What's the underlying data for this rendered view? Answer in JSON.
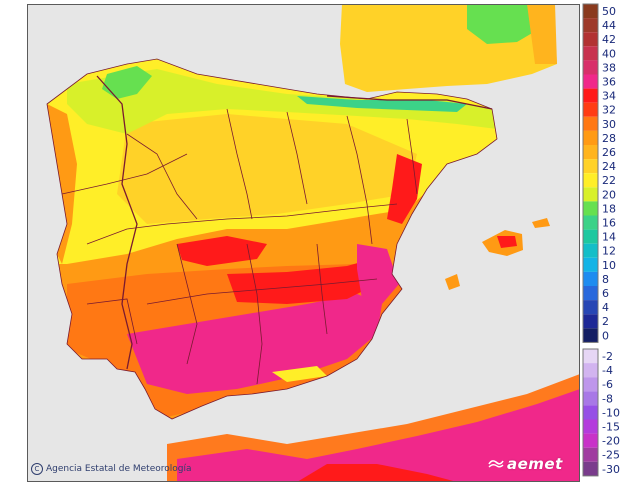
{
  "colors": {
    "sea": "#e6e6e6",
    "frame": "#5a5a5a",
    "border": "#7a1a30",
    "africa_coast": "#ff7a1e",
    "scale": {
      "c50": "#8a3a1e",
      "c44": "#9e3a2a",
      "c42": "#b23232",
      "c40": "#c8324e",
      "c38": "#d8306a",
      "c36": "#f0288a",
      "c34": "#ff1a1a",
      "c32": "#ff3c14",
      "c30": "#ff7814",
      "c28": "#ff9a14",
      "c26": "#ffb41e",
      "c24": "#ffd228",
      "c22": "#ffee28",
      "c20": "#d8f02a",
      "c18": "#66e050",
      "c16": "#3cd288",
      "c14": "#1ec8a0",
      "c12": "#14bec8",
      "c10": "#14b4e6",
      "c8": "#1e8cf0",
      "c6": "#2868dc",
      "c4": "#2846b4",
      "c2": "#1e2896",
      "c0": "#141e64",
      "cm2": "#e6d6f5",
      "cm4": "#d2b4f0",
      "cm6": "#be96eb",
      "cm8": "#a878e6",
      "cm10": "#9650e6",
      "cm15": "#b43cdc",
      "cm20": "#c832c8",
      "cm25": "#a03ca0",
      "cm30": "#7a3c8c"
    }
  },
  "legend": {
    "labels": [
      "50",
      "44",
      "42",
      "40",
      "38",
      "36",
      "34",
      "32",
      "30",
      "28",
      "26",
      "24",
      "22",
      "20",
      "18",
      "16",
      "14",
      "12",
      "10",
      "8",
      "6",
      "4",
      "2",
      "0",
      "-2",
      "-4",
      "-6",
      "-8",
      "-10",
      "-15",
      "-20",
      "-25",
      "-30"
    ]
  },
  "credit": "Agencia Estatal de Meteorología",
  "logo": "aemet",
  "icons": [
    "copyright-icon",
    "aemet-swirl-icon"
  ]
}
